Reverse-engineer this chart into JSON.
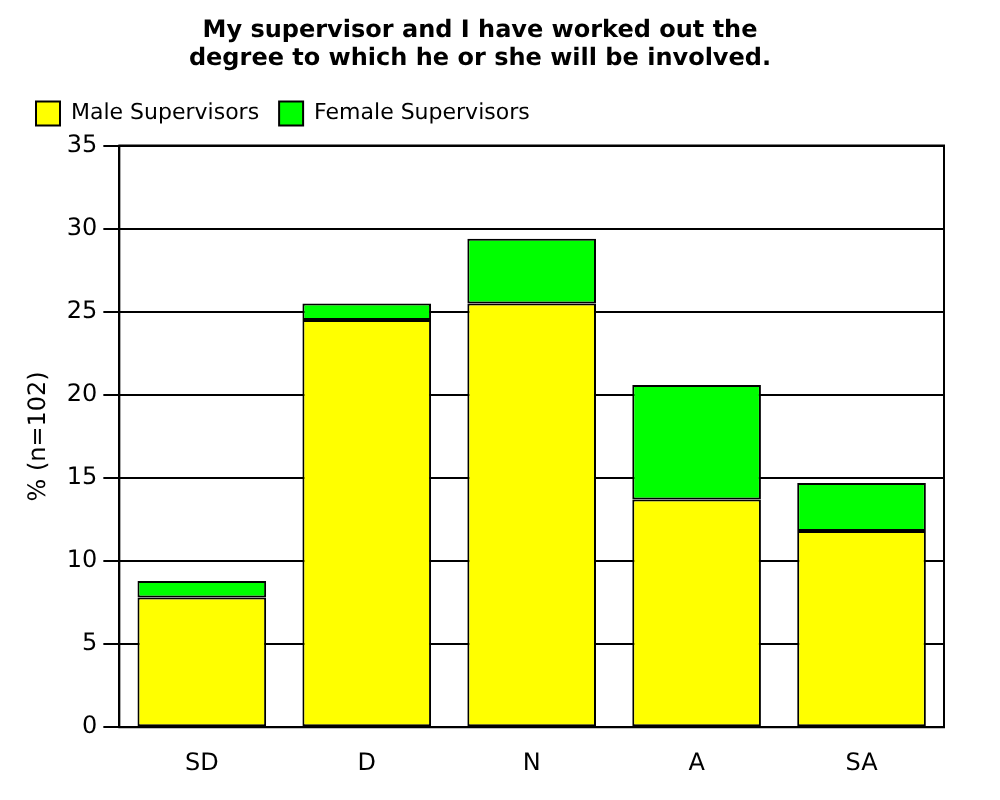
{
  "chart_data": {
    "type": "bar",
    "title": "My supervisor and I have worked out the degree to which he or she will be involved.",
    "ylabel": "% (n=102)",
    "categories": [
      "SD",
      "D",
      "N",
      "A",
      "SA"
    ],
    "stacked": true,
    "series": [
      {
        "name": "Male Supervisors",
        "color": "#ffff00",
        "values": [
          7.8,
          24.5,
          25.5,
          13.7,
          11.8
        ]
      },
      {
        "name": "Female Supervisors",
        "color": "#00ff00",
        "values": [
          1.0,
          1.0,
          3.9,
          6.9,
          2.9
        ]
      }
    ],
    "ylim": [
      0,
      35
    ],
    "yticks": [
      0,
      5,
      10,
      15,
      20,
      25,
      30,
      35
    ],
    "grid": "y",
    "legend": "top left"
  }
}
